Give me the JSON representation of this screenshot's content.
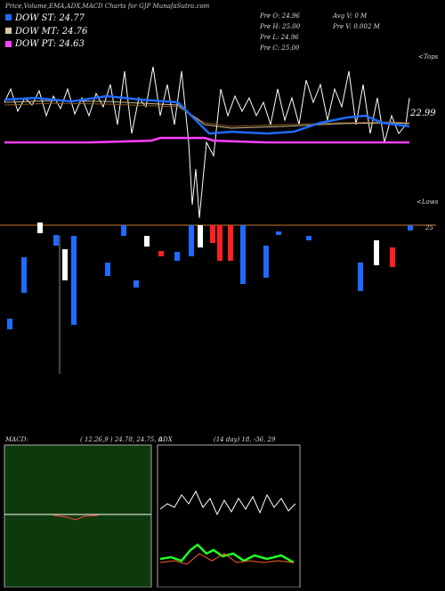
{
  "header": {
    "title": "Price,Volume,EMA,ADX,MACD Charts for GJP MunafaSutra.com"
  },
  "legend": [
    "DOW ST: 24.77",
    "DOW MT: 24.76",
    "DOW PT: 24.63"
  ],
  "stats": [
    "Pre  O: 24.96",
    "Pre  H: 25.00",
    "Pre  L: 24.96",
    "Pre  C: 25.00",
    "Avg V: 0  M",
    "Pre  V: 0.002  M"
  ],
  "price_panel": {
    "last_price": "22.99",
    "tops": "<Tops",
    "lows": "<Lows",
    "candle_label": "25"
  },
  "macd": {
    "name": "MACD:",
    "params": "( 12,26,9 ) 24.78, 24.75, 0"
  },
  "adx": {
    "name": "ADX",
    "params": "(14  day) 18, -36, 29"
  }
}
